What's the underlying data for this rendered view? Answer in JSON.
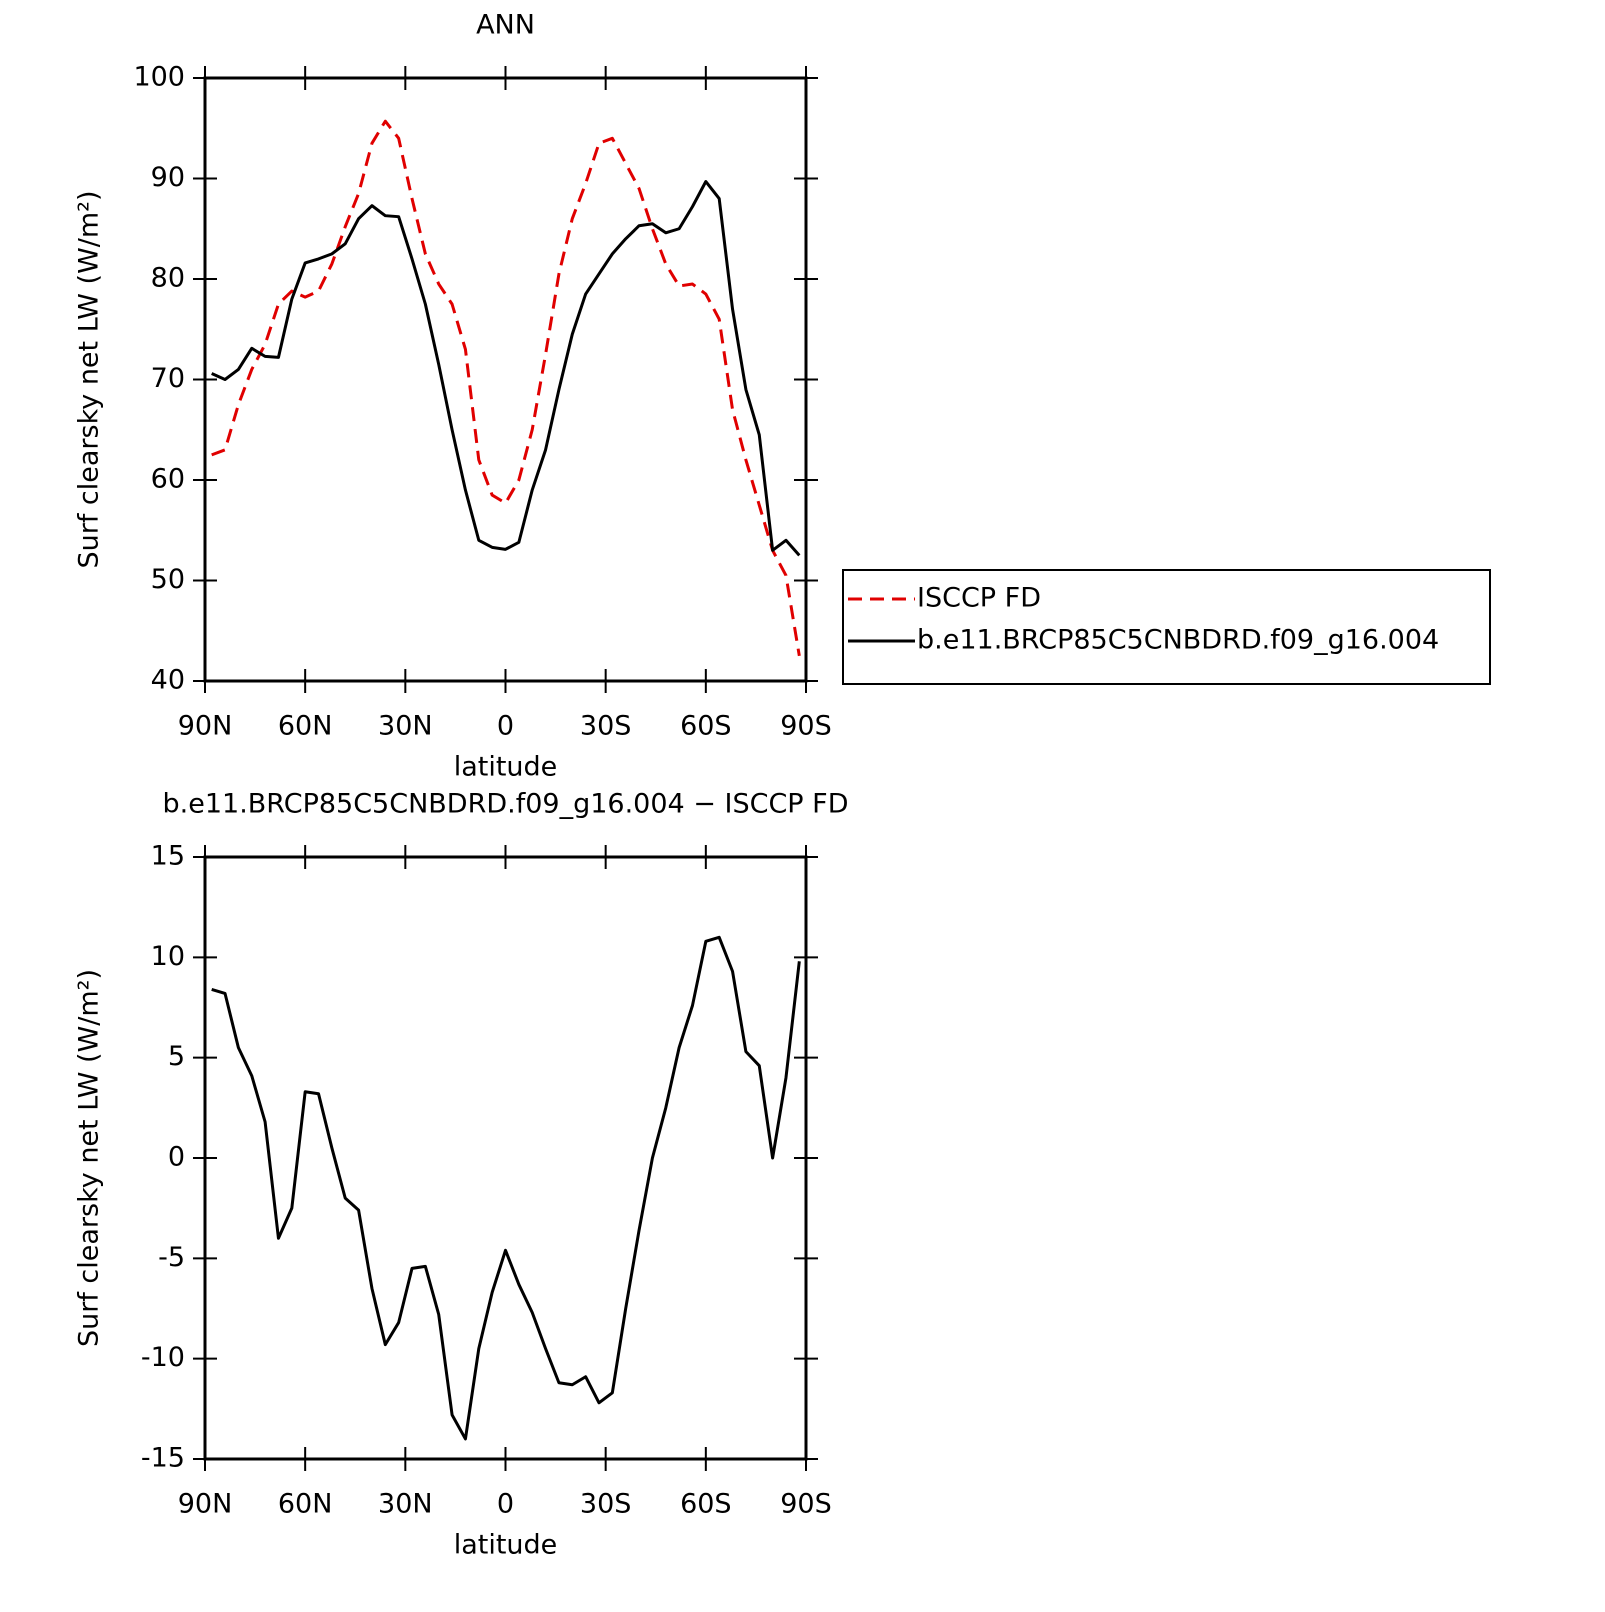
{
  "chart_data": [
    {
      "type": "line",
      "title": "ANN",
      "x_label": "latitude",
      "y_label": "Surf clearsky net LW (W/m²)",
      "x": [
        88,
        84,
        80,
        76,
        72,
        68,
        64,
        60,
        56,
        52,
        48,
        44,
        40,
        36,
        32,
        28,
        24,
        20,
        16,
        12,
        8,
        4,
        0,
        -4,
        -8,
        -12,
        -16,
        -20,
        -24,
        -28,
        -32,
        -36,
        -40,
        -44,
        -48,
        -52,
        -56,
        -60,
        -64,
        -68,
        -72,
        -76,
        -80,
        -84,
        -88
      ],
      "series": [
        {
          "name": "ISCCP FD",
          "color": "#e00000",
          "dash": true,
          "values": [
            62.5,
            63,
            67.5,
            71,
            73.5,
            77.5,
            78.8,
            78.2,
            78.8,
            81.5,
            85.2,
            88.5,
            93.5,
            95.7,
            94,
            88,
            82.5,
            79.5,
            77.5,
            73,
            62,
            58.5,
            57.7,
            60,
            65,
            72.5,
            80.5,
            86,
            89.5,
            93.5,
            94,
            91.5,
            89,
            85,
            81.5,
            79.3,
            79.5,
            78.5,
            76,
            67,
            62,
            57.5,
            53,
            50.5,
            42.5
          ]
        },
        {
          "name": "b.e11.BRCP85C5CNBDRD.f09_g16.004",
          "color": "#000000",
          "dash": false,
          "values": [
            70.6,
            70,
            71,
            73.1,
            72.3,
            72.2,
            78,
            81.6,
            82,
            82.5,
            83.5,
            86,
            87.3,
            86.3,
            86.2,
            82,
            77.5,
            71.5,
            65,
            59,
            54,
            53.3,
            53.1,
            53.8,
            59,
            63,
            69,
            74.5,
            78.5,
            80.5,
            82.5,
            84,
            85.3,
            85.5,
            84.6,
            85,
            87.2,
            89.7,
            88,
            77,
            69,
            64.5,
            53,
            54,
            52.5
          ]
        }
      ],
      "xlim": [
        90,
        -90
      ],
      "xticks": [
        {
          "value": 90,
          "label": "90N"
        },
        {
          "value": 60,
          "label": "60N"
        },
        {
          "value": 30,
          "label": "30N"
        },
        0,
        {
          "value": -30,
          "label": "30S"
        },
        {
          "value": -60,
          "label": "60S"
        },
        {
          "value": -90,
          "label": "90S"
        }
      ],
      "ylim": [
        40,
        100
      ],
      "yticks": [
        40,
        50,
        60,
        70,
        80,
        90,
        100
      ],
      "legend": "right"
    },
    {
      "type": "line",
      "title": "b.e11.BRCP85C5CNBDRD.f09_g16.004 − ISCCP FD",
      "x_label": "latitude",
      "y_label": "Surf clearsky net LW (W/m²)",
      "x": [
        88,
        84,
        80,
        76,
        72,
        68,
        64,
        60,
        56,
        52,
        48,
        44,
        40,
        36,
        32,
        28,
        24,
        20,
        16,
        12,
        8,
        4,
        0,
        -4,
        -8,
        -12,
        -16,
        -20,
        -24,
        -28,
        -32,
        -36,
        -40,
        -44,
        -48,
        -52,
        -56,
        -60,
        -64,
        -68,
        -72,
        -76,
        -80,
        -84,
        -88
      ],
      "values": [
        8.4,
        8.2,
        5.5,
        4.1,
        1.8,
        -4,
        -2.5,
        3.3,
        3.2,
        0.5,
        -2,
        -2.6,
        -6.5,
        -9.3,
        -8.2,
        -5.5,
        -5.4,
        -7.8,
        -12.8,
        -14,
        -9.5,
        -6.7,
        -4.6,
        -6.3,
        -7.7,
        -9.5,
        -11.2,
        -11.3,
        -10.9,
        -12.2,
        -11.7,
        -7.5,
        -3.6,
        0,
        2.5,
        5.5,
        7.6,
        10.8,
        11,
        9.3,
        5.3,
        4.6,
        0,
        4,
        9.8
      ],
      "color": "#000000",
      "xlim": [
        90,
        -90
      ],
      "xticks": [
        {
          "value": 90,
          "label": "90N"
        },
        {
          "value": 60,
          "label": "60N"
        },
        {
          "value": 30,
          "label": "30N"
        },
        0,
        {
          "value": -30,
          "label": "30S"
        },
        {
          "value": -60,
          "label": "60S"
        },
        {
          "value": -90,
          "label": "90S"
        }
      ],
      "ylim": [
        -15,
        15
      ],
      "yticks": [
        -15,
        -10,
        -5,
        0,
        5,
        10,
        15
      ]
    }
  ]
}
